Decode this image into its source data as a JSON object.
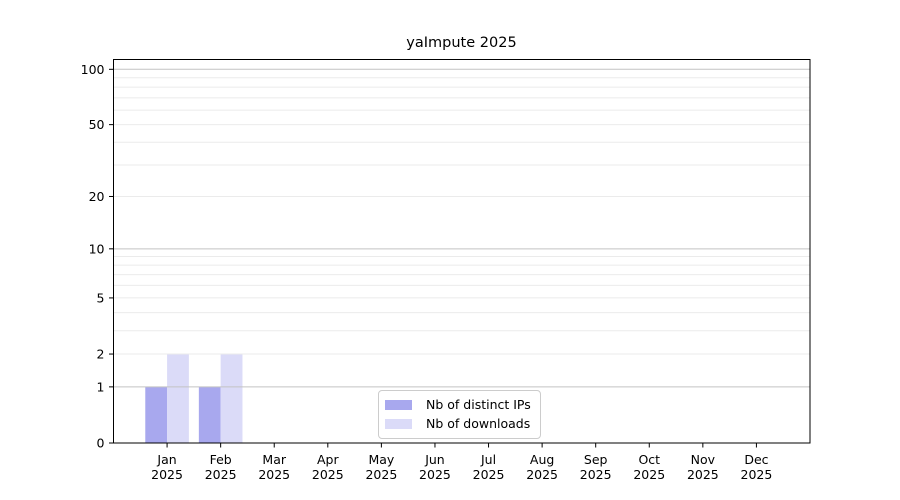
{
  "chart_data": {
    "type": "bar",
    "title": "yaImpute 2025",
    "categories": [
      "Jan",
      "Feb",
      "Mar",
      "Apr",
      "May",
      "Jun",
      "Jul",
      "Aug",
      "Sep",
      "Oct",
      "Nov",
      "Dec"
    ],
    "category_year": "2025",
    "series": [
      {
        "name": "Nb of distinct IPs",
        "color": "#a8a8ee",
        "values": [
          1,
          1,
          0,
          0,
          0,
          0,
          0,
          0,
          0,
          0,
          0,
          0
        ]
      },
      {
        "name": "Nb of downloads",
        "color": "#dbdbf8",
        "values": [
          2,
          2,
          0,
          0,
          0,
          0,
          0,
          0,
          0,
          0,
          0,
          0
        ]
      }
    ],
    "yscale": "log1p",
    "ylim": [
      0,
      113
    ],
    "y_tick_values": [
      0,
      1,
      2,
      5,
      10,
      20,
      50,
      100
    ],
    "y_tick_labels": [
      "0",
      "1",
      "2",
      "5",
      "10",
      "20",
      "50",
      "100"
    ],
    "y_major_gridlines": [
      1,
      10,
      100
    ],
    "y_minor_gridlines": [
      2,
      3,
      4,
      5,
      6,
      7,
      8,
      9,
      20,
      30,
      40,
      50,
      60,
      70,
      80,
      90
    ],
    "grid": true,
    "legend_position": "bottom-center",
    "colors": {
      "spine": "#000000",
      "major_grid": "#c3c3c3",
      "minor_grid": "#ebebeb",
      "text": "#000000",
      "background": "#ffffff"
    }
  }
}
